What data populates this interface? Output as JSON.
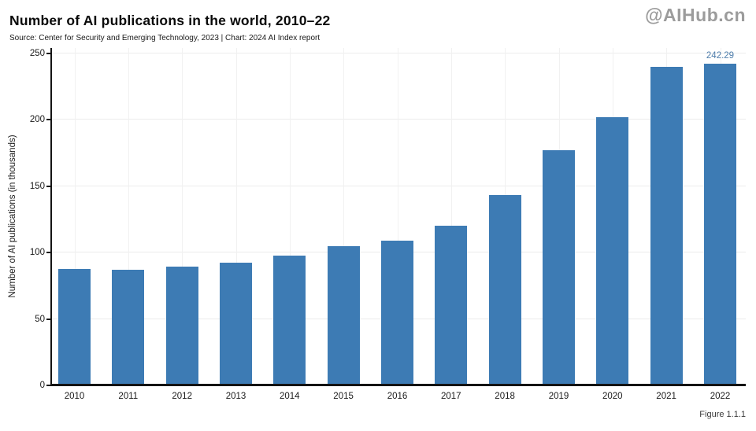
{
  "header": {
    "title": "Number of AI publications in the world, 2010–22",
    "source": "Source: Center for Security and Emerging Technology, 2023 | Chart: 2024 AI Index report",
    "watermark": "@AIHub.cn"
  },
  "footer": {
    "figure_label": "Figure 1.1.1"
  },
  "chart_data": {
    "type": "bar",
    "title": "Number of AI publications in the world, 2010–22",
    "categories": [
      "2010",
      "2011",
      "2012",
      "2013",
      "2014",
      "2015",
      "2016",
      "2017",
      "2018",
      "2019",
      "2020",
      "2021",
      "2022"
    ],
    "values": [
      88.0,
      87.3,
      89.6,
      92.7,
      97.5,
      105.1,
      108.9,
      120.3,
      143.5,
      177.2,
      201.8,
      240.0,
      242.29
    ],
    "xlabel": "",
    "ylabel": "Number of AI publications (in thousands)",
    "yticks": [
      0,
      50,
      100,
      150,
      200,
      250
    ],
    "ylim": [
      0,
      254
    ],
    "grid": true,
    "legend": "none",
    "annotations": [
      {
        "category": "2022",
        "text": "242.29"
      }
    ],
    "colors": {
      "bar": "#3d7bb4",
      "annotation_text": "#4e7dab",
      "axis_line": "#141414",
      "grid_horizontal": "#ececec",
      "grid_vertical": "#f1f1f1",
      "tick_text": "#1a1a1a",
      "watermark_text": "#9c9c9c"
    }
  }
}
